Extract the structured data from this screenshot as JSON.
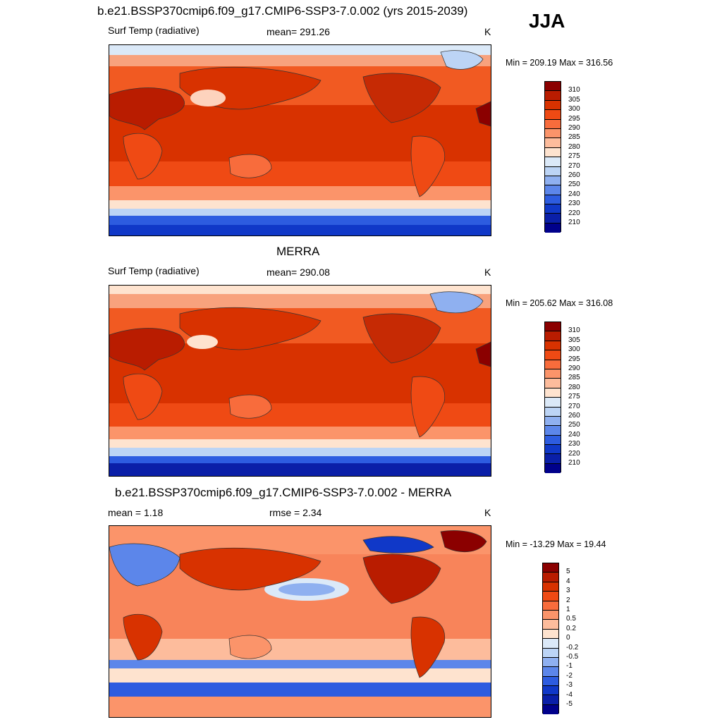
{
  "season": "JJA",
  "panel1": {
    "title": "b.e21.BSSP370cmip6.f09_g17.CMIP6-SSP3-7.0.002 (yrs 2015-2039)",
    "variable": "Surf Temp (radiative)",
    "mean": "mean= 291.26",
    "units": "K",
    "minmax": "Min = 209.19 Max = 316.56"
  },
  "panel2": {
    "title": "MERRA",
    "variable": "Surf Temp (radiative)",
    "mean": "mean= 290.08",
    "units": "K",
    "minmax": "Min = 205.62 Max = 316.08"
  },
  "panel3": {
    "title": "b.e21.BSSP370cmip6.f09_g17.CMIP6-SSP3-7.0.002 - MERRA",
    "mean": "mean =   1.18",
    "rmse": "rmse =   2.34",
    "units": "K",
    "minmax": "Min = -13.29 Max =  19.44"
  },
  "abs_colorbar": {
    "labels": [
      "310",
      "305",
      "300",
      "295",
      "290",
      "285",
      "280",
      "275",
      "270",
      "260",
      "250",
      "240",
      "230",
      "220",
      "210"
    ],
    "colors": [
      "#8b0000",
      "#b91c00",
      "#d83200",
      "#ef4a14",
      "#f86c3c",
      "#fb946a",
      "#fdbc9c",
      "#fee3cf",
      "#dbe9f8",
      "#bcd4f5",
      "#8fb0f0",
      "#5c86ea",
      "#2d5ce0",
      "#1038c8",
      "#0a1fa8",
      "#00008b"
    ]
  },
  "diff_colorbar": {
    "labels": [
      "5",
      "4",
      "3",
      "2",
      "1",
      "0.5",
      "0.2",
      "0",
      "-0.2",
      "-0.5",
      "-1",
      "-2",
      "-3",
      "-4",
      "-5"
    ],
    "colors": [
      "#8b0000",
      "#b91c00",
      "#d83200",
      "#ef4a14",
      "#f86c3c",
      "#fb946a",
      "#fdbc9c",
      "#fee3cf",
      "#dbe9f8",
      "#bcd4f5",
      "#8fb0f0",
      "#5c86ea",
      "#2d5ce0",
      "#1038c8",
      "#0a1fa8",
      "#00008b"
    ]
  }
}
